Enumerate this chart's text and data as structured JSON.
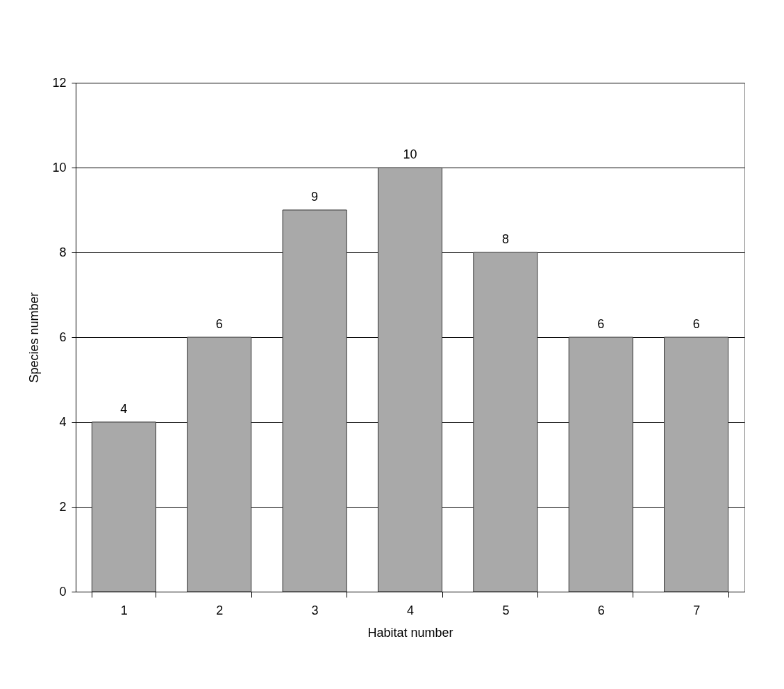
{
  "chart_data": {
    "type": "bar",
    "xlabel": "Habitat number",
    "ylabel": "Species number",
    "categories": [
      "1",
      "2",
      "3",
      "4",
      "5",
      "6",
      "7"
    ],
    "values": [
      4,
      6,
      9,
      10,
      8,
      6,
      6
    ],
    "color": "#a9a9a9",
    "ylim": [
      0,
      12
    ],
    "yticks": [
      0,
      2,
      4,
      6,
      8,
      10,
      12
    ],
    "grid": "y",
    "data_labels": true
  }
}
